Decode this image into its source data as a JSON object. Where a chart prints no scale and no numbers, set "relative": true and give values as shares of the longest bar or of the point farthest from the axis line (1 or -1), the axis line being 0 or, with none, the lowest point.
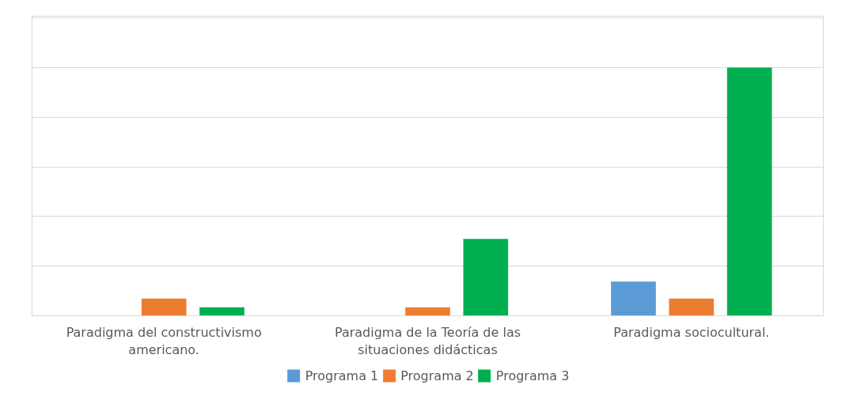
{
  "chart_data": {
    "type": "bar",
    "relative": true,
    "grid": "y",
    "legend": "bottom",
    "categories": [
      "Paradigma del constructivismo americano.",
      "Paradigma de la Teoría de las situaciones didácticas",
      "Paradigma sociocultural."
    ],
    "series": [
      {
        "name": "Programa 1",
        "color": "#5b9bd5",
        "values": [
          null,
          null,
          0.138
        ]
      },
      {
        "name": "Programa 2",
        "color": "#ed7d31",
        "values": [
          0.069,
          0.034,
          0.069
        ]
      },
      {
        "name": "Programa 3",
        "color": "#00b050",
        "values": [
          0.034,
          0.31,
          1
        ]
      }
    ]
  }
}
